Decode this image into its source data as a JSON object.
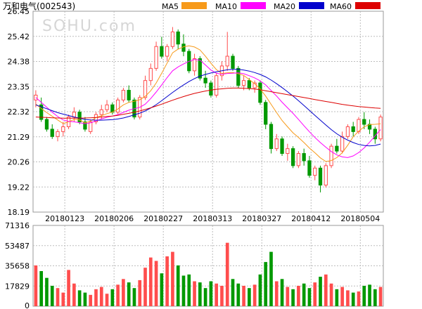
{
  "title": "万和电气(002543)",
  "watermark": "SOHU.com",
  "legend": [
    {
      "label": "MA5",
      "color": "#f79a1a"
    },
    {
      "label": "MA10",
      "color": "#ff00ff"
    },
    {
      "label": "MA20",
      "color": "#0000cc"
    },
    {
      "label": "MA60",
      "color": "#dd0000"
    }
  ],
  "colors": {
    "up": "#ff4d4d",
    "down": "#009900",
    "grid": "#bdbdbd"
  },
  "chart_data": [
    {
      "type": "candlestick",
      "title": "",
      "ylim": [
        18.19,
        26.45
      ],
      "y_ticks": [
        "26.45",
        "25.42",
        "24.38",
        "23.35",
        "22.32",
        "21.29",
        "20.26",
        "19.22",
        "18.19"
      ],
      "x_ticks": [
        "20180123",
        "20180206",
        "20180227",
        "20180313",
        "20180327",
        "20180412",
        "20180504"
      ],
      "grid": true,
      "ohlc": [
        [
          22.8,
          23.2,
          22.5,
          23.0
        ],
        [
          22.6,
          22.9,
          21.9,
          22.0
        ],
        [
          22.0,
          22.1,
          21.5,
          21.6
        ],
        [
          21.6,
          21.8,
          21.2,
          21.3
        ],
        [
          21.3,
          21.6,
          21.1,
          21.5
        ],
        [
          21.5,
          21.9,
          21.3,
          21.7
        ],
        [
          21.7,
          22.2,
          21.6,
          22.1
        ],
        [
          22.1,
          22.5,
          21.9,
          22.3
        ],
        [
          22.3,
          22.4,
          21.8,
          21.9
        ],
        [
          21.9,
          22.1,
          21.5,
          21.6
        ],
        [
          21.5,
          22.0,
          21.4,
          21.9
        ],
        [
          21.9,
          22.3,
          21.8,
          22.2
        ],
        [
          22.2,
          22.6,
          22.0,
          22.4
        ],
        [
          22.4,
          22.8,
          22.3,
          22.6
        ],
        [
          22.6,
          22.7,
          22.2,
          22.3
        ],
        [
          22.3,
          22.9,
          22.2,
          22.8
        ],
        [
          22.8,
          23.3,
          22.7,
          23.2
        ],
        [
          23.2,
          23.4,
          22.7,
          22.8
        ],
        [
          22.8,
          22.9,
          22.0,
          22.1
        ],
        [
          22.1,
          23.0,
          22.0,
          22.9
        ],
        [
          22.9,
          23.8,
          22.8,
          23.6
        ],
        [
          23.6,
          24.3,
          23.4,
          24.1
        ],
        [
          24.1,
          25.2,
          24.0,
          25.0
        ],
        [
          25.0,
          25.4,
          24.5,
          24.6
        ],
        [
          24.6,
          25.1,
          24.4,
          25.0
        ],
        [
          25.0,
          25.8,
          24.9,
          25.6
        ],
        [
          25.6,
          25.7,
          24.9,
          25.1
        ],
        [
          25.1,
          25.5,
          24.6,
          24.8
        ],
        [
          24.8,
          24.9,
          23.9,
          24.0
        ],
        [
          24.0,
          24.7,
          23.8,
          24.5
        ],
        [
          24.5,
          24.6,
          23.6,
          23.7
        ],
        [
          23.7,
          24.0,
          23.3,
          23.5
        ],
        [
          23.5,
          23.6,
          22.9,
          23.0
        ],
        [
          23.0,
          23.9,
          22.9,
          23.8
        ],
        [
          23.8,
          24.4,
          23.6,
          24.2
        ],
        [
          24.2,
          25.6,
          24.0,
          24.6
        ],
        [
          24.6,
          24.7,
          24.0,
          24.1
        ],
        [
          24.1,
          24.2,
          23.3,
          23.4
        ],
        [
          23.4,
          23.8,
          23.2,
          23.6
        ],
        [
          23.6,
          23.7,
          23.2,
          23.3
        ],
        [
          23.3,
          23.6,
          23.1,
          23.5
        ],
        [
          23.5,
          23.6,
          22.6,
          22.7
        ],
        [
          22.7,
          22.8,
          21.6,
          21.8
        ],
        [
          21.8,
          21.9,
          20.6,
          20.8
        ],
        [
          20.8,
          21.4,
          20.7,
          21.2
        ],
        [
          21.2,
          21.3,
          20.5,
          20.6
        ],
        [
          20.6,
          21.0,
          20.3,
          20.8
        ],
        [
          20.8,
          20.9,
          20.0,
          20.1
        ],
        [
          20.1,
          20.7,
          20.0,
          20.6
        ],
        [
          20.6,
          20.8,
          20.1,
          20.3
        ],
        [
          20.3,
          20.5,
          19.6,
          19.7
        ],
        [
          19.7,
          20.1,
          19.5,
          20.0
        ],
        [
          20.0,
          20.1,
          19.0,
          19.3
        ],
        [
          19.3,
          20.2,
          19.2,
          20.1
        ],
        [
          20.1,
          21.0,
          20.0,
          20.9
        ],
        [
          20.9,
          21.2,
          20.6,
          20.7
        ],
        [
          20.7,
          21.5,
          20.6,
          21.3
        ],
        [
          21.3,
          21.8,
          21.2,
          21.7
        ],
        [
          21.7,
          21.9,
          21.3,
          21.5
        ],
        [
          21.5,
          22.1,
          21.4,
          22.0
        ],
        [
          22.0,
          22.3,
          21.6,
          21.8
        ],
        [
          21.8,
          22.0,
          21.4,
          21.6
        ],
        [
          21.6,
          21.7,
          21.0,
          21.2
        ],
        [
          21.2,
          22.2,
          21.1,
          22.1
        ]
      ],
      "ma": {
        "MA5": [
          22.63,
          22.45,
          22.28,
          22.13,
          21.98,
          21.83,
          21.9,
          22.0,
          21.98,
          21.86,
          21.93,
          22.08,
          22.15,
          22.24,
          22.3,
          22.43,
          22.6,
          22.7,
          22.75,
          22.81,
          22.95,
          23.18,
          23.5,
          23.9,
          24.32,
          24.74,
          24.89,
          24.99,
          25.03,
          24.98,
          24.86,
          24.6,
          24.31,
          24.05,
          23.89,
          23.92,
          23.93,
          23.88,
          23.81,
          23.64,
          23.47,
          23.26,
          22.96,
          22.62,
          22.28,
          21.96,
          21.7,
          21.45,
          21.26,
          21.05,
          20.82,
          20.63,
          20.42,
          20.27,
          20.31,
          20.43,
          20.63,
          20.94,
          21.29,
          21.52,
          21.7,
          21.79,
          21.8,
          21.82
        ],
        "MA10": [
          22.9,
          22.7,
          22.5,
          22.3,
          22.12,
          21.98,
          21.92,
          21.9,
          21.87,
          21.82,
          21.86,
          21.94,
          22.02,
          22.09,
          22.14,
          22.2,
          22.29,
          22.38,
          22.44,
          22.5,
          22.63,
          22.86,
          23.13,
          23.42,
          23.72,
          24.0,
          24.16,
          24.28,
          24.39,
          24.47,
          24.44,
          24.24,
          24.03,
          23.9,
          23.86,
          23.89,
          23.9,
          23.92,
          23.88,
          23.8,
          23.71,
          23.59,
          23.42,
          23.19,
          22.96,
          22.71,
          22.48,
          22.25,
          22.0,
          21.74,
          21.49,
          21.26,
          21.05,
          20.86,
          20.68,
          20.54,
          20.46,
          20.43,
          20.5,
          20.64,
          20.83,
          21.06,
          21.33,
          21.58
        ],
        "MA20": [
          22.6,
          22.52,
          22.44,
          22.36,
          22.28,
          22.22,
          22.16,
          22.1,
          22.05,
          22.0,
          21.98,
          21.97,
          21.97,
          21.98,
          21.99,
          22.02,
          22.06,
          22.12,
          22.19,
          22.26,
          22.35,
          22.47,
          22.61,
          22.77,
          22.94,
          23.11,
          23.27,
          23.42,
          23.56,
          23.68,
          23.78,
          23.85,
          23.91,
          23.96,
          24.0,
          24.04,
          24.06,
          24.06,
          24.03,
          23.99,
          23.93,
          23.85,
          23.75,
          23.62,
          23.47,
          23.31,
          23.14,
          22.96,
          22.77,
          22.57,
          22.37,
          22.17,
          21.97,
          21.77,
          21.58,
          21.41,
          21.27,
          21.15,
          21.05,
          20.97,
          20.93,
          20.91,
          20.93,
          20.99
        ],
        "MA60": [
          22.1,
          22.09,
          22.08,
          22.07,
          22.06,
          22.05,
          22.05,
          22.05,
          22.05,
          22.06,
          22.07,
          22.08,
          22.1,
          22.12,
          22.14,
          22.17,
          22.21,
          22.25,
          22.3,
          22.35,
          22.41,
          22.48,
          22.55,
          22.63,
          22.71,
          22.79,
          22.87,
          22.94,
          23.01,
          23.07,
          23.12,
          23.17,
          23.21,
          23.24,
          23.26,
          23.28,
          23.29,
          23.29,
          23.28,
          23.27,
          23.25,
          23.22,
          23.18,
          23.14,
          23.1,
          23.06,
          23.02,
          22.98,
          22.94,
          22.9,
          22.86,
          22.82,
          22.78,
          22.74,
          22.7,
          22.66,
          22.62,
          22.59,
          22.56,
          22.53,
          22.51,
          22.49,
          22.47,
          22.46
        ]
      }
    },
    {
      "type": "bar",
      "title": "",
      "ylim": [
        0,
        71316
      ],
      "y_ticks": [
        "71316",
        "53487",
        "35658",
        "17829",
        "0"
      ],
      "grid": true,
      "values": [
        36000,
        31000,
        25000,
        18000,
        16000,
        12000,
        32000,
        20000,
        14000,
        12000,
        10000,
        15000,
        17000,
        11000,
        15000,
        19000,
        24000,
        21000,
        16000,
        23000,
        34000,
        43000,
        40000,
        29000,
        44000,
        48000,
        36000,
        27000,
        28000,
        22000,
        21000,
        16000,
        22000,
        20000,
        18000,
        56000,
        24000,
        20000,
        18000,
        16000,
        19000,
        28000,
        39000,
        48000,
        22000,
        24000,
        17000,
        15000,
        18000,
        20000,
        16000,
        21000,
        26000,
        28000,
        20000,
        15000,
        17000,
        14000,
        12000,
        13000,
        18000,
        19000,
        15000,
        17000
      ],
      "up_days": [
        true,
        false,
        false,
        false,
        true,
        true,
        true,
        true,
        false,
        false,
        true,
        true,
        true,
        true,
        false,
        true,
        true,
        false,
        false,
        true,
        true,
        true,
        true,
        false,
        true,
        true,
        false,
        false,
        false,
        true,
        false,
        false,
        false,
        true,
        true,
        true,
        false,
        false,
        true,
        false,
        true,
        false,
        false,
        false,
        true,
        false,
        true,
        false,
        true,
        false,
        false,
        true,
        false,
        true,
        true,
        false,
        true,
        true,
        false,
        true,
        false,
        false,
        false,
        true
      ]
    }
  ]
}
